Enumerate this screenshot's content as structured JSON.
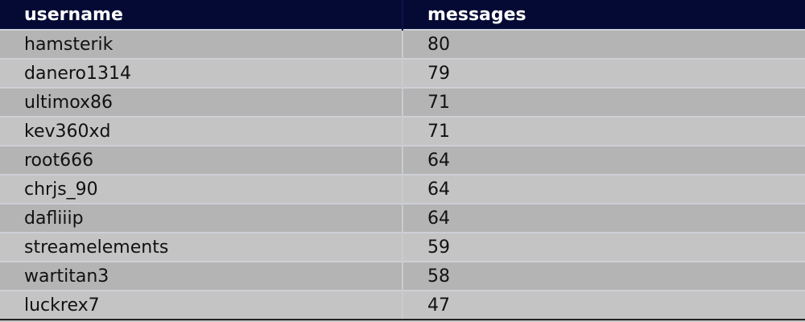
{
  "table": {
    "columns": [
      "username",
      "messages"
    ],
    "rows": [
      {
        "username": "hamsterik",
        "messages": "80"
      },
      {
        "username": "danero1314",
        "messages": "79"
      },
      {
        "username": "ultimox86",
        "messages": "71"
      },
      {
        "username": "kev360xd",
        "messages": "71"
      },
      {
        "username": "root666",
        "messages": "64"
      },
      {
        "username": "chrjs_90",
        "messages": "64"
      },
      {
        "username": "dafliiip",
        "messages": "64"
      },
      {
        "username": "streamelements",
        "messages": "59"
      },
      {
        "username": "wartitan3",
        "messages": "58"
      },
      {
        "username": "luckrex7",
        "messages": "47"
      }
    ]
  },
  "colors": {
    "header_bg": "#050a35",
    "row_odd": "#b4b4b4",
    "row_even": "#c4c4c4"
  }
}
